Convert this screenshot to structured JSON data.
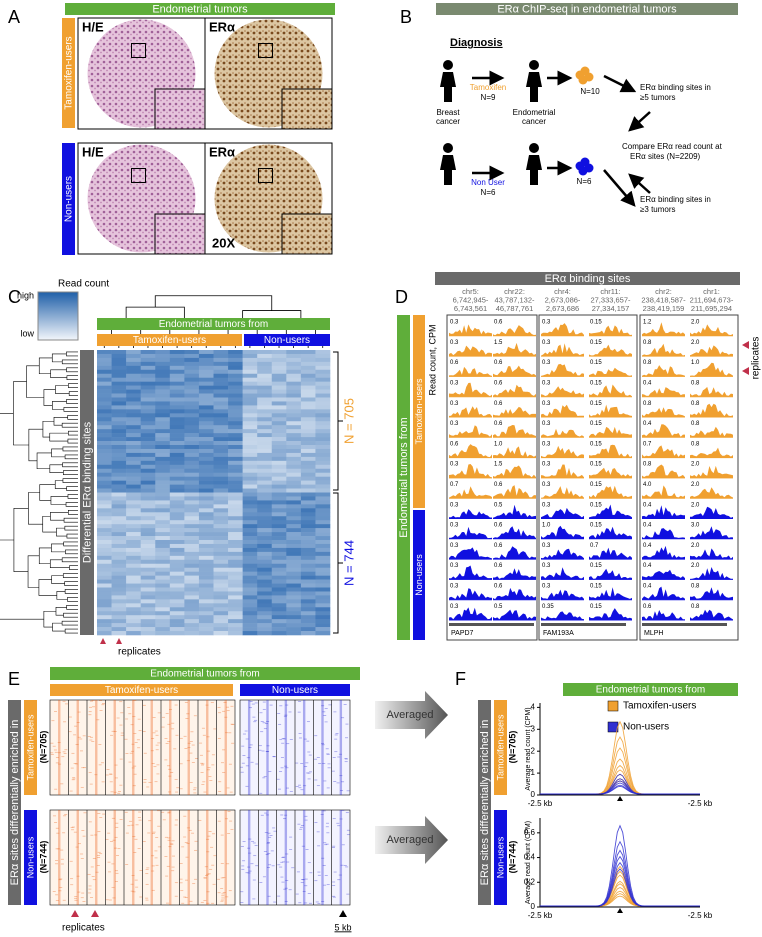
{
  "panel_labels": [
    "A",
    "B",
    "C",
    "D",
    "E",
    "F"
  ],
  "panel_a": {
    "header": "Endometrial tumors",
    "group_labels": [
      "Tamoxifen-users",
      "Non-users"
    ],
    "stain_labels": [
      "H/E",
      "ERα",
      "H/E",
      "ERα"
    ],
    "magnification": "20X"
  },
  "panel_b": {
    "header": "ERα ChIP-seq in endometrial tumors",
    "diagnosis": "Diagnosis",
    "breast": [
      "Breast",
      "cancer"
    ],
    "endometrial": [
      "Endometrial",
      "cancer"
    ],
    "tamoxifen": "Tamoxifen",
    "tamoxifen_n": "N=9",
    "non_user": "Non User",
    "non_user_n": "N=6",
    "tumors_top_n": "N=10",
    "tumors_bottom_n": "N=6",
    "sites_top": [
      "ERα binding sites in",
      "≥5 tumors"
    ],
    "compare": [
      "Compare  ERα read count at",
      "ERα sites   (N=2209)"
    ],
    "sites_bottom": [
      "ERα binding sites in",
      "≥3 tumors"
    ]
  },
  "panel_c": {
    "legend_title": "Read count",
    "legend_high": "high",
    "legend_low": "low",
    "header": "Endometrial tumors from",
    "groups": [
      "Tamoxifen-users",
      "Non-users"
    ],
    "side_label": "Differential ERα binding sites",
    "n_top": "N = 705",
    "n_bottom": "N = 744",
    "replicates": "replicates"
  },
  "panel_d": {
    "header": "ERα binding sites",
    "side_label": "Endometrial tumors from",
    "groups": [
      "Tamoxifen-users",
      "Non-users"
    ],
    "y_label": "Read count, CPM",
    "replicates": "replicates",
    "columns": [
      {
        "coords": [
          "chr5:",
          "6,742,945-",
          "6,743,561"
        ],
        "scales": [
          "0.3",
          "0.3",
          "0.6",
          "0.3",
          "0.3",
          "0.3",
          "0.6",
          "0.3",
          "0.7",
          "0.3",
          "0.3",
          "0.3",
          "0.3",
          "0.3",
          "0.3"
        ]
      },
      {
        "coords": [
          "chr22:",
          "43,787,132-",
          "46,787,761"
        ],
        "scales": [
          "0.6",
          "1.5",
          "0.6",
          "0.6",
          "0.6",
          "0.6",
          "1.0",
          "1.5",
          "0.6",
          "0.5",
          "0.6",
          "0.6",
          "0.6",
          "0.6",
          "0.5"
        ]
      },
      {
        "coords": [
          "chr4:",
          "2,673,086-",
          "2,673,686"
        ],
        "scales": [
          "0.3",
          "0.3",
          "0.3",
          "0.3",
          "0.3",
          "0.3",
          "0.3",
          "0.3",
          "0.3",
          "0.3",
          "1.0",
          "0.3",
          "0.3",
          "0.3",
          "0.35"
        ]
      },
      {
        "coords": [
          "chr11:",
          "27,333,657-",
          "27,334,157"
        ],
        "scales": [
          "0.15",
          "0.15",
          "0.15",
          "0.15",
          "0.15",
          "0.15",
          "0.15",
          "0.15",
          "0.15",
          "0.15",
          "0.15",
          "0.7",
          "0.15",
          "0.15",
          "0.15"
        ]
      },
      {
        "coords": [
          "chr2:",
          "238,418,587-",
          "238,419,159"
        ],
        "scales": [
          "1.2",
          "0.8",
          "0.8",
          "0.4",
          "0.8",
          "0.4",
          "0.7",
          "0.8",
          "4.0",
          "0.4",
          "0.4",
          "0.4",
          "0.4",
          "0.4",
          "0.6"
        ]
      },
      {
        "coords": [
          "chr1:",
          "211,694,673-",
          "211,695,294"
        ],
        "scales": [
          "2.0",
          "2.0",
          "1.0",
          "0.8",
          "0.8",
          "0.8",
          "0.8",
          "2.0",
          "2.0",
          "2.0",
          "3.0",
          "2.0",
          "2.0",
          "0.8",
          "0.8"
        ]
      }
    ],
    "genes": [
      "PAPD7",
      "FAM193A",
      "MLPH"
    ]
  },
  "panel_e": {
    "header": "Endometrial tumors from",
    "groups": [
      "Tamoxifen-users",
      "Non-users"
    ],
    "side_label": "ERα sites differentially enriched in",
    "rows": [
      {
        "group": "Tamoxifen-users",
        "n": "(N=705)"
      },
      {
        "group": "Non-users",
        "n": "(N=744)"
      }
    ],
    "replicates": "replicates",
    "scale": "5 kb"
  },
  "arrows": [
    "Averaged",
    "Averaged"
  ],
  "panel_f": {
    "header": "Endometrial tumors from",
    "side_label": "ERα sites differentially enriched in",
    "rows": [
      {
        "group": "Tamoxifen-users",
        "n": "(N=705)"
      },
      {
        "group": "Non-users",
        "n": "(N=744)"
      }
    ],
    "legend": [
      {
        "name": "Tamoxifen-users",
        "color": "#f0a030"
      },
      {
        "name": "Non-users",
        "color": "#3030d0"
      }
    ],
    "plots": [
      {
        "ylabel": "Average read count (CPM)",
        "ylim": [
          0,
          4.2
        ],
        "yticks": [
          0,
          1,
          2,
          3,
          4
        ],
        "xlabels": [
          "-2.5 kb",
          "-2.5 kb"
        ],
        "peaks": [
          [
            3.3,
            2.6,
            2.1,
            1.6,
            1.3,
            1.1,
            0.9,
            0.7,
            0.6
          ],
          [
            0.9,
            0.7,
            0.6,
            0.5,
            0.4,
            0.35
          ]
        ]
      },
      {
        "ylabel": "Average read count (CPM)",
        "ylim": [
          0,
          0.72
        ],
        "yticks": [
          0,
          0.2,
          0.4,
          0.6
        ],
        "xlabels": [
          "-2.5 kb",
          "-2.5 kb"
        ],
        "peaks": [
          [
            0.32,
            0.28,
            0.25,
            0.2,
            0.18,
            0.15,
            0.12,
            0.1,
            0.08
          ],
          [
            0.65,
            0.52,
            0.45,
            0.4,
            0.35,
            0.3
          ]
        ]
      }
    ]
  }
}
